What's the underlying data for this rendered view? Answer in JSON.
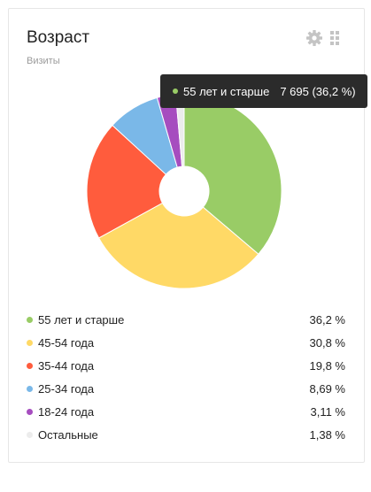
{
  "header": {
    "title": "Возраст",
    "subtitle": "Визиты"
  },
  "toolbar": {
    "settings_icon": "gear-icon",
    "drag_icon": "drag-handle-icon"
  },
  "tooltip": {
    "label": "55 лет и старше",
    "value": "7 695 (36,2 %)",
    "color": "#99cc66"
  },
  "legend": [
    {
      "label": "55 лет и старше",
      "value": "36,2 %"
    },
    {
      "label": "45-54 года",
      "value": "30,8 %"
    },
    {
      "label": "35-44 года",
      "value": "19,8 %"
    },
    {
      "label": "25-34 года",
      "value": "8,69 %"
    },
    {
      "label": "18-24 года",
      "value": "3,11 %"
    },
    {
      "label": "Остальные",
      "value": "1,38 %"
    }
  ],
  "chart_data": {
    "type": "pie",
    "donut": true,
    "categories": [
      "55 лет и старше",
      "45-54 года",
      "35-44 года",
      "25-34 года",
      "18-24 года",
      "Остальные"
    ],
    "values": [
      36.2,
      30.8,
      19.8,
      8.69,
      3.11,
      1.38
    ],
    "colors": [
      "#99cc66",
      "#ffd966",
      "#ff5c3d",
      "#7ab8e8",
      "#a64dbf",
      "#ececec"
    ],
    "highlighted": "55 лет и старше",
    "legend_position": "bottom"
  }
}
